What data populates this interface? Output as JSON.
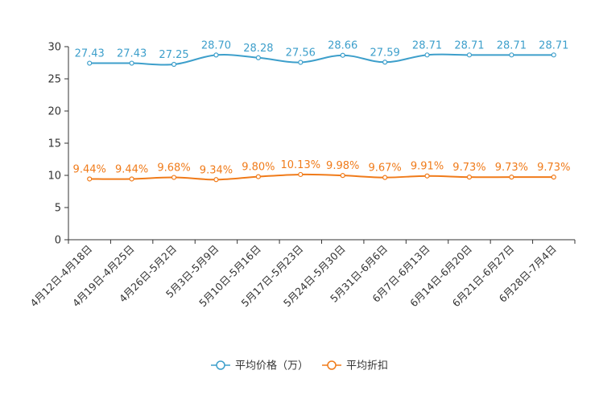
{
  "chart_data": {
    "type": "line",
    "categories": [
      "4月12日-4月18日",
      "4月19日-4月25日",
      "4月26日-5月2日",
      "5月3日-5月9日",
      "5月10日-5月16日",
      "5月17日-5月23日",
      "5月24日-5月30日",
      "5月31日-6月6日",
      "6月7日-6月13日",
      "6月14日-6月20日",
      "6月21日-6月27日",
      "6月28日-7月4日"
    ],
    "series": [
      {
        "name": "平均价格（万）",
        "values": [
          27.43,
          27.43,
          27.25,
          28.7,
          28.28,
          27.56,
          28.66,
          27.59,
          28.71,
          28.71,
          28.71,
          28.71
        ],
        "labels": [
          "27.43",
          "27.43",
          "27.25",
          "28.70",
          "28.28",
          "27.56",
          "28.66",
          "27.59",
          "28.71",
          "28.71",
          "28.71",
          "28.71"
        ],
        "color": "#3d9fcb"
      },
      {
        "name": "平均折扣",
        "values": [
          9.44,
          9.44,
          9.68,
          9.34,
          9.8,
          10.13,
          9.98,
          9.67,
          9.91,
          9.73,
          9.73,
          9.73
        ],
        "labels": [
          "9.44%",
          "9.44%",
          "9.68%",
          "9.34%",
          "9.80%",
          "10.13%",
          "9.98%",
          "9.67%",
          "9.91%",
          "9.73%",
          "9.73%",
          "9.73%"
        ],
        "color": "#f07b1a"
      }
    ],
    "yticks": [
      "0",
      "5",
      "10",
      "15",
      "20",
      "25",
      "30"
    ],
    "ylim": [
      0,
      30
    ],
    "legend": "bottom-center"
  }
}
